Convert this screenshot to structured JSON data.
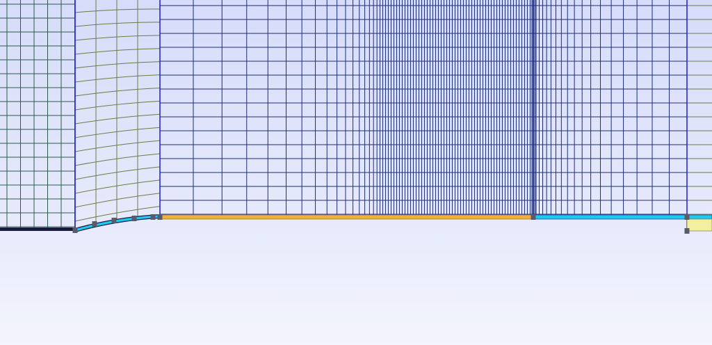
{
  "app": {
    "view": "mesh-viewport"
  },
  "colors": {
    "background_top": "#d6dcfa",
    "background_bottom": "#f3f4fd",
    "mesh_line_left": "#2c5a4a",
    "mesh_line_transition": "#6b7a45",
    "mesh_line_main": "#1c2c78",
    "block_boundary": "#1a1fd0",
    "wall_segment_cyan": "#1ec8f0",
    "wall_segment_orange": "#f0b040",
    "wall_left_dark": "#1a1a40",
    "vertex_marker": "#5a5a6a",
    "inlet_fill": "#f2f0a0"
  },
  "icons": {
    "vertex": "square-vertex-marker"
  }
}
